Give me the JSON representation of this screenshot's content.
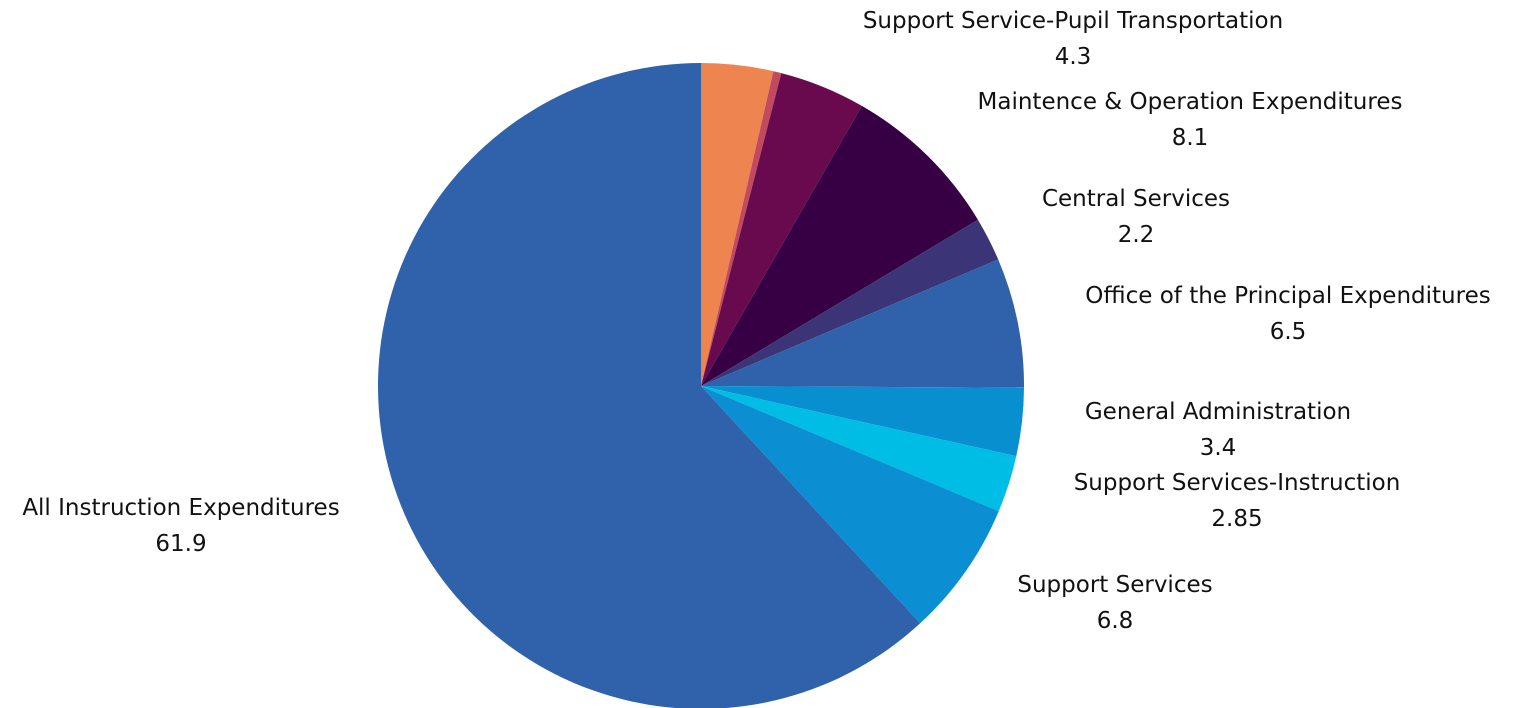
{
  "chart_data": {
    "type": "pie",
    "title": "",
    "start_angle_deg": 0,
    "direction": "clockwise",
    "slices": [
      {
        "label": "",
        "value": 3.6,
        "color": "#ee8550",
        "show_label": false
      },
      {
        "label": "",
        "value": 0.4,
        "color": "#c24a5e",
        "show_label": false
      },
      {
        "label": "Support Service-Pupil Transportation",
        "value": 4.3,
        "color": "#6a0a4e",
        "show_label": true
      },
      {
        "label": "Maintence & Operation Expenditures",
        "value": 8.1,
        "color": "#370044",
        "show_label": true
      },
      {
        "label": "Central Services",
        "value": 2.2,
        "color": "#3b3477",
        "show_label": true
      },
      {
        "label": "Office of the Principal Expenditures",
        "value": 6.5,
        "color": "#2f62aa",
        "show_label": true
      },
      {
        "label": "General Administration",
        "value": 3.4,
        "color": "#088fd0",
        "show_label": true
      },
      {
        "label": "Support Services-Instruction",
        "value": 2.85,
        "color": "#00bde5",
        "show_label": true
      },
      {
        "label": "Support Services",
        "value": 6.8,
        "color": "#0b8fd2",
        "show_label": true
      },
      {
        "label": "All Instruction Expenditures",
        "value": 61.9,
        "color": "#2f62aa",
        "show_label": true
      }
    ]
  }
}
